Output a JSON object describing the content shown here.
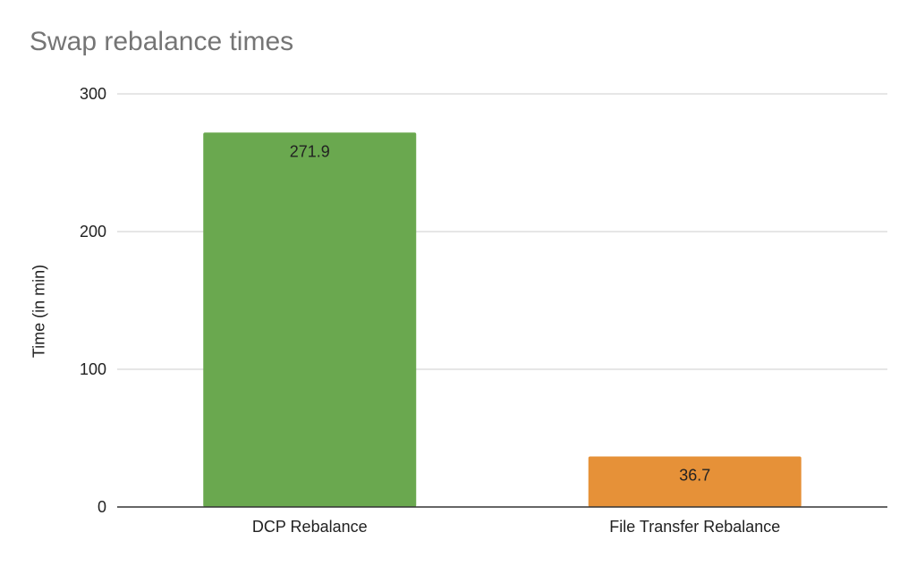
{
  "chart_data": {
    "type": "bar",
    "title": "Swap rebalance times",
    "xlabel": "",
    "ylabel": "Time (in min)",
    "categories": [
      "DCP Rebalance",
      "File Transfer Rebalance"
    ],
    "values": [
      271.9,
      36.7
    ],
    "data_labels": [
      "271.9",
      "36.7"
    ],
    "colors": [
      "#6aa84f",
      "#e69138"
    ],
    "ylim": [
      0,
      300
    ],
    "yticks": [
      0,
      100,
      200,
      300
    ],
    "ytick_labels": [
      "0",
      "100",
      "200",
      "300"
    ],
    "grid": true,
    "legend": "none"
  }
}
